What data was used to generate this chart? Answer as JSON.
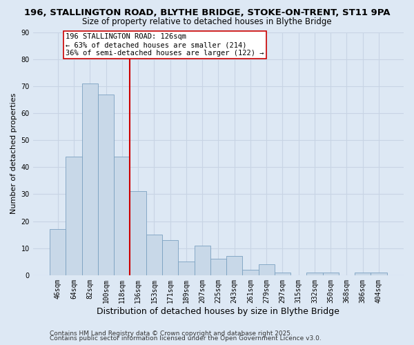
{
  "title_line1": "196, STALLINGTON ROAD, BLYTHE BRIDGE, STOKE-ON-TRENT, ST11 9PA",
  "title_line2": "Size of property relative to detached houses in Blythe Bridge",
  "xlabel": "Distribution of detached houses by size in Blythe Bridge",
  "ylabel": "Number of detached properties",
  "categories": [
    "46sqm",
    "64sqm",
    "82sqm",
    "100sqm",
    "118sqm",
    "136sqm",
    "153sqm",
    "171sqm",
    "189sqm",
    "207sqm",
    "225sqm",
    "243sqm",
    "261sqm",
    "279sqm",
    "297sqm",
    "315sqm",
    "332sqm",
    "350sqm",
    "368sqm",
    "386sqm",
    "404sqm"
  ],
  "values": [
    17,
    44,
    71,
    67,
    44,
    31,
    15,
    13,
    5,
    11,
    6,
    7,
    2,
    4,
    1,
    0,
    1,
    1,
    0,
    1,
    1
  ],
  "bar_color": "#c8d8e8",
  "bar_edge_color": "#7aa0c0",
  "vline_color": "#cc0000",
  "vline_pos": 4.5,
  "annotation_line1": "196 STALLINGTON ROAD: 126sqm",
  "annotation_line2": "← 63% of detached houses are smaller (214)",
  "annotation_line3": "36% of semi-detached houses are larger (122) →",
  "annotation_box_color": "#ffffff",
  "annotation_box_edge": "#cc0000",
  "ylim": [
    0,
    90
  ],
  "yticks": [
    0,
    10,
    20,
    30,
    40,
    50,
    60,
    70,
    80,
    90
  ],
  "grid_color": "#c8d4e4",
  "background_color": "#dde8f4",
  "footer_line1": "Contains HM Land Registry data © Crown copyright and database right 2025.",
  "footer_line2": "Contains public sector information licensed under the Open Government Licence v3.0.",
  "title_fontsize": 9.5,
  "subtitle_fontsize": 8.5,
  "xlabel_fontsize": 9,
  "ylabel_fontsize": 8,
  "tick_fontsize": 7,
  "annotation_fontsize": 7.5,
  "footer_fontsize": 6.5
}
